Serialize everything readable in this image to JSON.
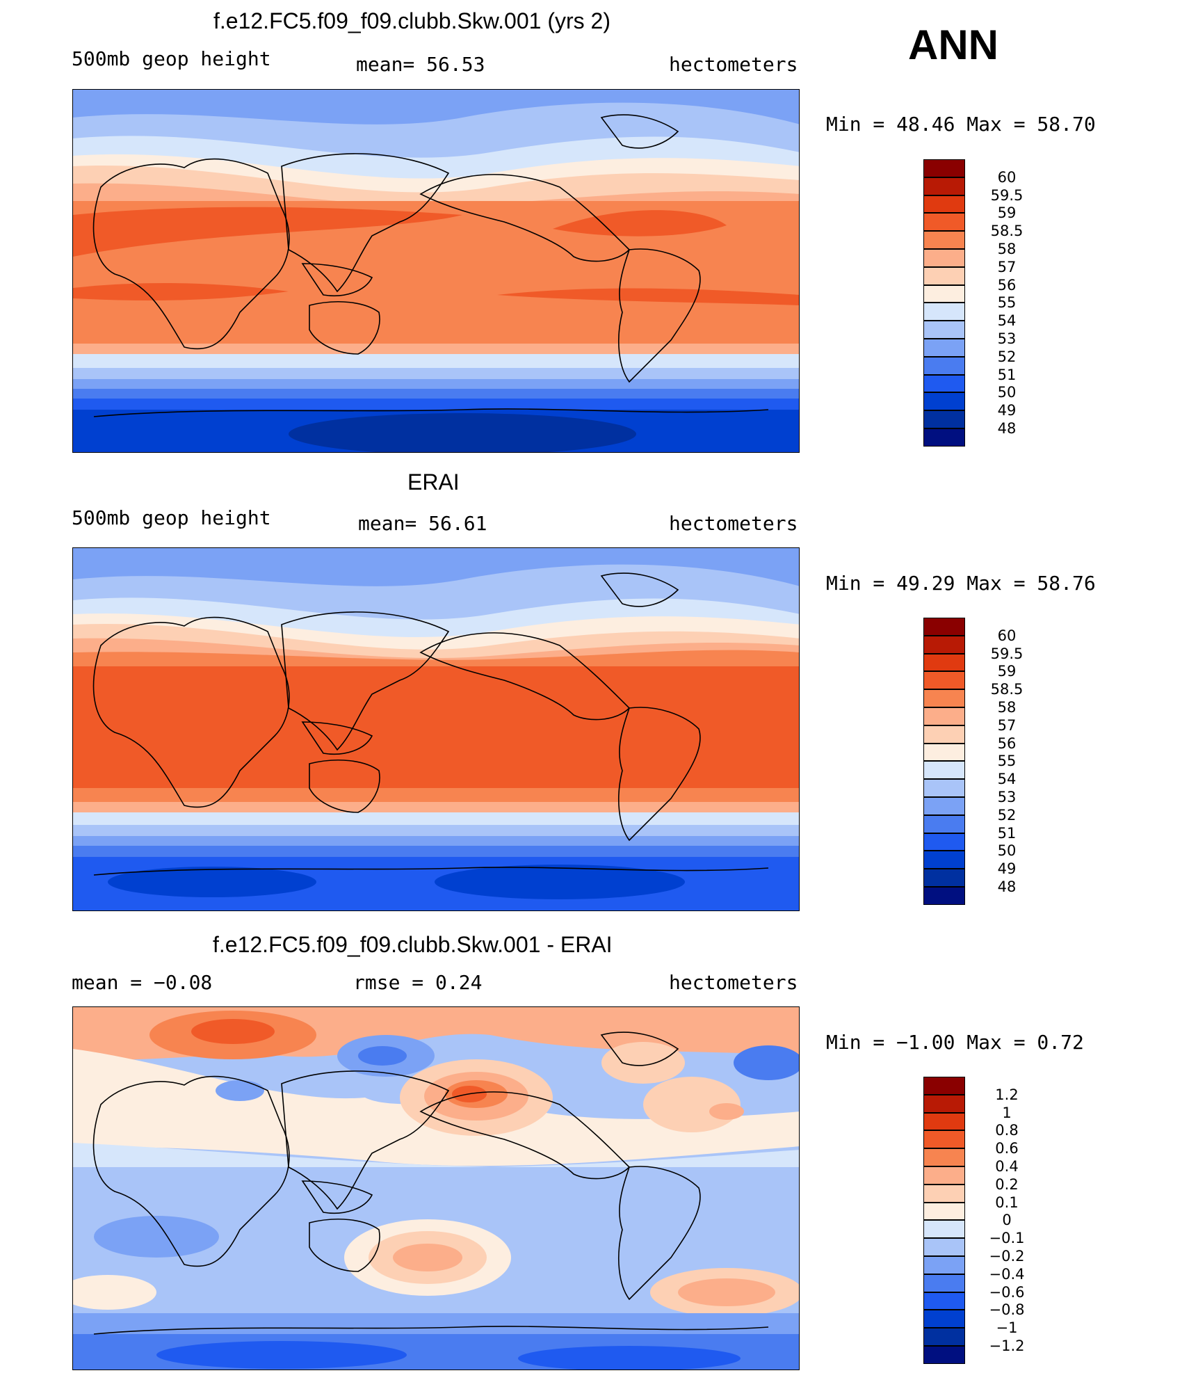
{
  "season": "ANN",
  "panels": [
    {
      "id": "model",
      "title": "f.e12.FC5.f09_f09.clubb.Skw.001 (yrs 2)",
      "left_text": "500mb geop height",
      "center_text": "mean=  56.53",
      "right_text": "hectometers",
      "minmax_text": "Min =  48.46 Max =  58.70",
      "colorbar": {
        "colors": [
          "#000f80",
          "#0030a0",
          "#0040d0",
          "#1f5af0",
          "#4a7cf0",
          "#7ba2f5",
          "#a9c4f8",
          "#d6e6fb",
          "#fdeee0",
          "#fdd0b4",
          "#fcae8a",
          "#f78450",
          "#f05a28",
          "#e03a10",
          "#b81a05",
          "#8a0000"
        ],
        "labels": [
          "60",
          "59.5",
          "59",
          "58.5",
          "58",
          "57",
          "56",
          "55",
          "54",
          "53",
          "52",
          "51",
          "50",
          "49",
          "48"
        ]
      }
    },
    {
      "id": "obs",
      "title": "ERAI",
      "left_text": "500mb geop height",
      "center_text": "mean=  56.61",
      "right_text": "hectometers",
      "minmax_text": "Min =  49.29 Max =  58.76",
      "colorbar": {
        "colors": [
          "#000f80",
          "#0030a0",
          "#0040d0",
          "#1f5af0",
          "#4a7cf0",
          "#7ba2f5",
          "#a9c4f8",
          "#d6e6fb",
          "#fdeee0",
          "#fdd0b4",
          "#fcae8a",
          "#f78450",
          "#f05a28",
          "#e03a10",
          "#b81a05",
          "#8a0000"
        ],
        "labels": [
          "60",
          "59.5",
          "59",
          "58.5",
          "58",
          "57",
          "56",
          "55",
          "54",
          "53",
          "52",
          "51",
          "50",
          "49",
          "48"
        ]
      }
    },
    {
      "id": "diff",
      "title": "f.e12.FC5.f09_f09.clubb.Skw.001 - ERAI",
      "left_text": "mean =  −0.08",
      "center_text": "rmse =   0.24",
      "right_text": "hectometers",
      "minmax_text": "Min =  −1.00 Max =   0.72",
      "colorbar": {
        "colors": [
          "#000f80",
          "#0030a0",
          "#0040d0",
          "#1f5af0",
          "#4a7cf0",
          "#7ba2f5",
          "#a9c4f8",
          "#d6e6fb",
          "#fdeee0",
          "#fdd0b4",
          "#fcae8a",
          "#f78450",
          "#f05a28",
          "#e03a10",
          "#b81a05",
          "#8a0000"
        ],
        "labels": [
          "1.2",
          "1",
          "0.8",
          "0.6",
          "0.4",
          "0.2",
          "0.1",
          "0",
          "−0.1",
          "−0.2",
          "−0.4",
          "−0.6",
          "−0.8",
          "−1",
          "−1.2"
        ]
      }
    }
  ]
}
